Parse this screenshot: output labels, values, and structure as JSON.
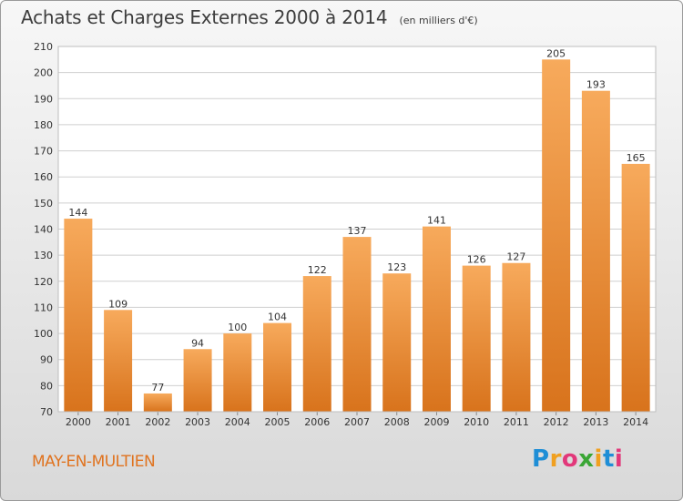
{
  "header": {
    "title": "Achats et Charges Externes 2000 à 2014",
    "subtitle": "(en milliers d'€)"
  },
  "footer": {
    "commune": "MAY-EN-MULTIEN",
    "logo": "Proxiti",
    "logo_colors": [
      "#1f8ed6",
      "#f0a020",
      "#e2387a",
      "#3aa635",
      "#f0a020",
      "#1f8ed6",
      "#e2387a"
    ]
  },
  "colors": {
    "bar_light": "#f7aa5c",
    "bar_dark": "#d8731c",
    "grid": "#cfcfcf",
    "axis_text": "#333333"
  },
  "chart_data": {
    "type": "bar",
    "title": "Achats et Charges Externes 2000 à 2014",
    "subtitle": "(en milliers d'€)",
    "categories": [
      "2000",
      "2001",
      "2002",
      "2003",
      "2004",
      "2005",
      "2006",
      "2007",
      "2008",
      "2009",
      "2010",
      "2011",
      "2012",
      "2013",
      "2014"
    ],
    "values": [
      144,
      109,
      77,
      94,
      100,
      104,
      122,
      137,
      123,
      141,
      126,
      127,
      205,
      193,
      165
    ],
    "ylim": [
      70,
      210
    ],
    "yticks": [
      70,
      80,
      90,
      100,
      110,
      120,
      130,
      140,
      150,
      160,
      170,
      180,
      190,
      200,
      210
    ],
    "grid": true,
    "data_labels": true
  }
}
